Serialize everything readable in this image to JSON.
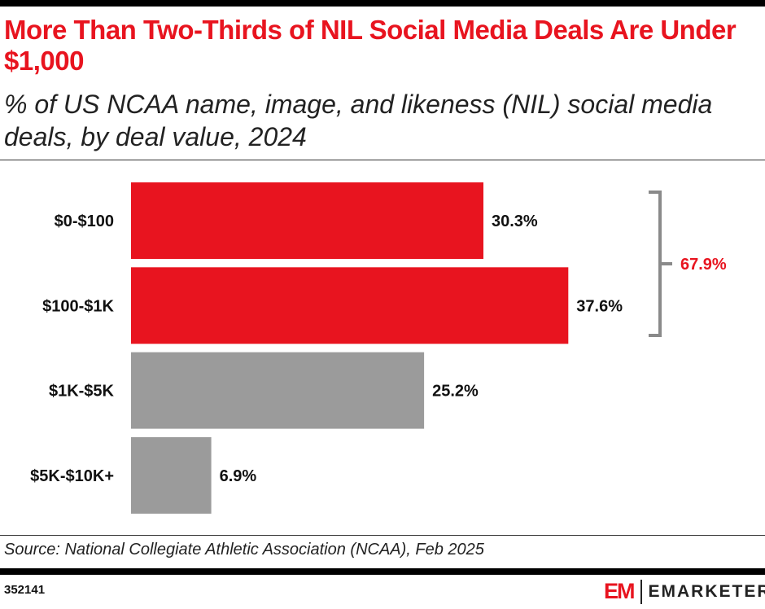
{
  "title": "More Than Two-Thirds of NIL Social Media Deals Are Under $1,000",
  "subtitle": "% of US NCAA name, image, and likeness (NIL) social media deals, by deal value, 2024",
  "source": "Source: National Collegiate Athletic Association (NCAA), Feb 2025",
  "chart_id": "352141",
  "logo": {
    "mark": "EM",
    "word": "EMARKETER"
  },
  "colors": {
    "highlight": "#e8141f",
    "other": "#9b9b9b",
    "bracket": "#8a8a8a"
  },
  "chart_data": {
    "type": "bar",
    "orientation": "horizontal",
    "categories": [
      "$0-$100",
      "$100-$1K",
      "$1K-$5K",
      "$5K-$10K+"
    ],
    "values": [
      30.3,
      37.6,
      25.2,
      6.9
    ],
    "data_labels": [
      "30.3%",
      "37.6%",
      "25.2%",
      "6.9%"
    ],
    "highlighted": [
      true,
      true,
      false,
      false
    ],
    "annotation": {
      "text": "67.9%",
      "spans": [
        "$0-$100",
        "$100-$1K"
      ]
    },
    "grid": false
  }
}
